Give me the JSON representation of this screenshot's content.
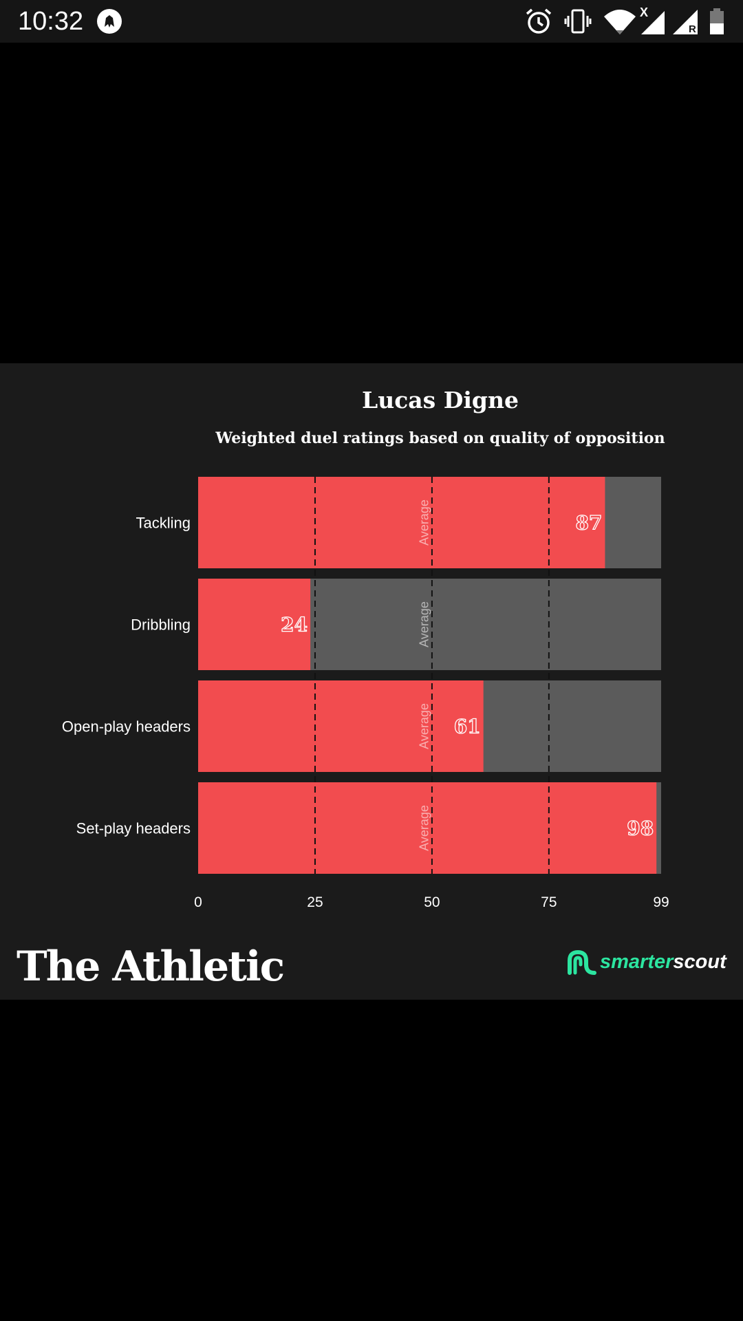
{
  "status_bar": {
    "time": "10:32",
    "icons": [
      "club-badge-icon",
      "alarm-icon",
      "vibrate-icon",
      "wifi-icon",
      "signal-icon",
      "signal-roaming-icon",
      "battery-icon"
    ],
    "roaming_label": "R",
    "no_data_label": "X"
  },
  "chart_data": {
    "type": "bar",
    "orientation": "horizontal",
    "title": "Lucas Digne",
    "subtitle": "Weighted duel ratings based on quality of opposition",
    "categories": [
      "Tackling",
      "Dribbling",
      "Open-play headers",
      "Set-play headers"
    ],
    "values": [
      87,
      24,
      61,
      98
    ],
    "xlim": [
      0,
      99
    ],
    "x_ticks": [
      0,
      25,
      50,
      75,
      99
    ],
    "reference_lines": [
      25,
      50,
      75
    ],
    "average_label": "Average",
    "average_value": 50,
    "grid": false,
    "legend": "none",
    "colors": {
      "value": "#f24c4f",
      "remainder": "#5b5b5b",
      "background": "#1b1b1b",
      "text": "#ffffff"
    }
  },
  "branding": {
    "left_logo": "The Athletic",
    "right_logo_prefix": "smarter",
    "right_logo_suffix": "scout",
    "right_logo_icon": "smarterscout-icon",
    "right_logo_color": "#2ce5a0"
  }
}
